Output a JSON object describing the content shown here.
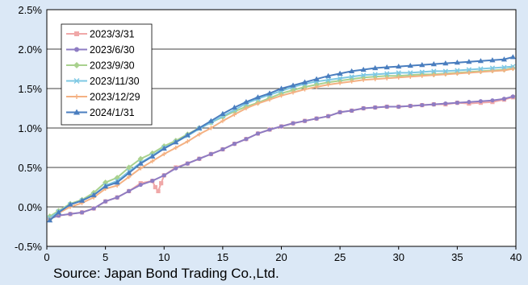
{
  "source_note": "Source: Japan Bond Trading Co.,Ltd.",
  "chart_data": {
    "type": "line",
    "xlabel": "",
    "ylabel": "",
    "xlim": [
      0,
      40
    ],
    "ylim": [
      -0.5,
      2.5
    ],
    "x_ticks": [
      "0",
      "5",
      "10",
      "15",
      "20",
      "25",
      "30",
      "35",
      "40"
    ],
    "y_ticks": [
      "-0.5%",
      "0.0%",
      "0.5%",
      "1.0%",
      "1.5%",
      "2.0%",
      "2.5%"
    ],
    "grid": "horizontal",
    "legend_position": "top-left",
    "series": [
      {
        "name": "2023/3/31",
        "color": "#f0a8a8",
        "marker": "square",
        "x": [
          0.25,
          1,
          2,
          3,
          4,
          5,
          6,
          7,
          8,
          9,
          9.25,
          9.5,
          9.75,
          10,
          11,
          12,
          13,
          14,
          15,
          16,
          17,
          18,
          19,
          20,
          21,
          22,
          23,
          24,
          25,
          26,
          27,
          28,
          29,
          30,
          31,
          32,
          33,
          34,
          35,
          36,
          37,
          38,
          39,
          39.75
        ],
        "y": [
          -0.15,
          -0.11,
          -0.09,
          -0.07,
          -0.02,
          0.07,
          0.12,
          0.2,
          0.3,
          0.33,
          0.25,
          0.2,
          0.3,
          0.4,
          0.5,
          0.55,
          0.61,
          0.67,
          0.73,
          0.8,
          0.86,
          0.93,
          0.98,
          1.02,
          1.06,
          1.09,
          1.12,
          1.15,
          1.2,
          1.22,
          1.25,
          1.26,
          1.27,
          1.27,
          1.28,
          1.29,
          1.3,
          1.3,
          1.32,
          1.31,
          1.32,
          1.33,
          1.36,
          1.39
        ]
      },
      {
        "name": "2023/6/30",
        "color": "#8e7cc3",
        "marker": "circle",
        "x": [
          0.25,
          1,
          2,
          3,
          4,
          5,
          6,
          7,
          8,
          9,
          10,
          11,
          12,
          13,
          14,
          15,
          16,
          17,
          18,
          19,
          20,
          21,
          22,
          23,
          24,
          25,
          26,
          27,
          28,
          29,
          30,
          31,
          32,
          33,
          34,
          35,
          36,
          37,
          38,
          39,
          39.75
        ],
        "y": [
          -0.15,
          -0.11,
          -0.09,
          -0.07,
          -0.02,
          0.07,
          0.12,
          0.2,
          0.28,
          0.33,
          0.4,
          0.49,
          0.55,
          0.61,
          0.67,
          0.73,
          0.8,
          0.86,
          0.93,
          0.98,
          1.02,
          1.06,
          1.09,
          1.12,
          1.15,
          1.2,
          1.22,
          1.25,
          1.26,
          1.27,
          1.27,
          1.28,
          1.29,
          1.3,
          1.31,
          1.32,
          1.33,
          1.34,
          1.35,
          1.37,
          1.4
        ]
      },
      {
        "name": "2023/9/30",
        "color": "#a9d18e",
        "marker": "diamond",
        "x": [
          0.25,
          1,
          2,
          3,
          4,
          5,
          6,
          7,
          8,
          9,
          10,
          11,
          12,
          13,
          14,
          15,
          16,
          17,
          18,
          19,
          20,
          21,
          22,
          23,
          24,
          25,
          26,
          27,
          28,
          29,
          30,
          31,
          32,
          33,
          34,
          35,
          36,
          37,
          38,
          39,
          39.75
        ],
        "y": [
          -0.12,
          -0.05,
          0.04,
          0.09,
          0.18,
          0.31,
          0.37,
          0.5,
          0.61,
          0.68,
          0.77,
          0.84,
          0.92,
          1.0,
          1.07,
          1.14,
          1.21,
          1.27,
          1.32,
          1.38,
          1.44,
          1.48,
          1.52,
          1.55,
          1.58,
          1.6,
          1.62,
          1.64,
          1.65,
          1.66,
          1.66,
          1.67,
          1.68,
          1.68,
          1.69,
          1.7,
          1.71,
          1.72,
          1.73,
          1.74,
          1.76
        ]
      },
      {
        "name": "2023/11/30",
        "color": "#7ec8e3",
        "marker": "x",
        "x": [
          0.25,
          1,
          2,
          3,
          4,
          5,
          6,
          7,
          8,
          9,
          10,
          11,
          12,
          13,
          14,
          15,
          16,
          17,
          18,
          19,
          20,
          21,
          22,
          23,
          24,
          25,
          26,
          27,
          28,
          29,
          30,
          31,
          32,
          33,
          34,
          35,
          36,
          37,
          38,
          39,
          39.75
        ],
        "y": [
          -0.14,
          -0.06,
          0.03,
          0.08,
          0.15,
          0.27,
          0.33,
          0.45,
          0.56,
          0.65,
          0.75,
          0.82,
          0.9,
          0.99,
          1.07,
          1.15,
          1.23,
          1.31,
          1.37,
          1.42,
          1.47,
          1.52,
          1.56,
          1.59,
          1.61,
          1.63,
          1.65,
          1.67,
          1.68,
          1.69,
          1.7,
          1.7,
          1.71,
          1.72,
          1.72,
          1.73,
          1.74,
          1.75,
          1.76,
          1.77,
          1.78
        ]
      },
      {
        "name": "2023/12/29",
        "color": "#f4b183",
        "marker": "plus",
        "x": [
          0.25,
          1,
          2,
          3,
          4,
          5,
          6,
          7,
          8,
          9,
          10,
          11,
          12,
          13,
          14,
          15,
          16,
          17,
          18,
          19,
          20,
          21,
          22,
          23,
          24,
          25,
          26,
          27,
          28,
          29,
          30,
          31,
          32,
          33,
          34,
          35,
          36,
          37,
          38,
          39,
          39.75
        ],
        "y": [
          -0.16,
          -0.08,
          0.0,
          0.05,
          0.12,
          0.23,
          0.27,
          0.38,
          0.49,
          0.58,
          0.67,
          0.75,
          0.83,
          0.92,
          1.0,
          1.09,
          1.17,
          1.25,
          1.31,
          1.36,
          1.41,
          1.45,
          1.49,
          1.52,
          1.55,
          1.57,
          1.59,
          1.61,
          1.62,
          1.63,
          1.64,
          1.65,
          1.66,
          1.67,
          1.68,
          1.69,
          1.7,
          1.71,
          1.72,
          1.73,
          1.75
        ]
      },
      {
        "name": "2024/1/31",
        "color": "#4a7ebf",
        "marker": "triangle",
        "x": [
          0.25,
          1,
          2,
          3,
          4,
          5,
          6,
          7,
          8,
          9,
          10,
          11,
          12,
          13,
          14,
          15,
          16,
          17,
          18,
          19,
          20,
          21,
          22,
          23,
          24,
          25,
          26,
          27,
          28,
          29,
          30,
          31,
          32,
          33,
          34,
          35,
          36,
          37,
          38,
          39,
          39.75
        ],
        "y": [
          -0.17,
          -0.07,
          0.03,
          0.08,
          0.15,
          0.26,
          0.31,
          0.43,
          0.55,
          0.64,
          0.74,
          0.82,
          0.91,
          1.0,
          1.09,
          1.18,
          1.26,
          1.33,
          1.39,
          1.44,
          1.5,
          1.54,
          1.58,
          1.62,
          1.66,
          1.69,
          1.72,
          1.74,
          1.76,
          1.77,
          1.78,
          1.79,
          1.8,
          1.81,
          1.82,
          1.83,
          1.84,
          1.85,
          1.86,
          1.87,
          1.9
        ]
      }
    ]
  }
}
